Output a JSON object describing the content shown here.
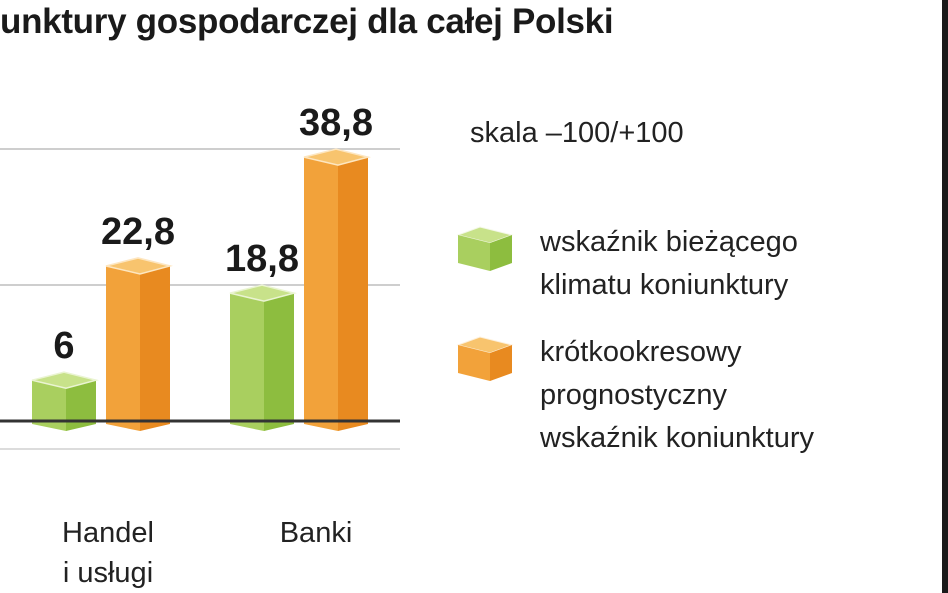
{
  "title": "unktury gospodarczej dla całej Polski",
  "scale_note": "skala –100/+100",
  "legend": [
    {
      "label": "wskaźnik bieżącego\nklimatu koniunktury",
      "color": "#a9cf5f"
    },
    {
      "label": "krótkookresowy\nprognostyczny\nwskaźnik koniunktury",
      "color": "#f2a23a"
    }
  ],
  "chart_data": {
    "type": "bar",
    "categories": [
      "Handel\ni usługi",
      "Banki"
    ],
    "series": [
      {
        "name": "wskaźnik bieżącego klimatu koniunktury",
        "values": [
          6,
          18.8
        ],
        "labels": [
          "6",
          "18,8"
        ],
        "color": "#a9cf5f"
      },
      {
        "name": "krótkookresowy prognostyczny wskaźnik koniunktury",
        "values": [
          22.8,
          38.8
        ],
        "labels": [
          "22,8",
          "38,8"
        ],
        "color": "#f2a23a"
      }
    ],
    "gridlines": [
      20,
      40
    ],
    "ylim": [
      0,
      40
    ]
  }
}
